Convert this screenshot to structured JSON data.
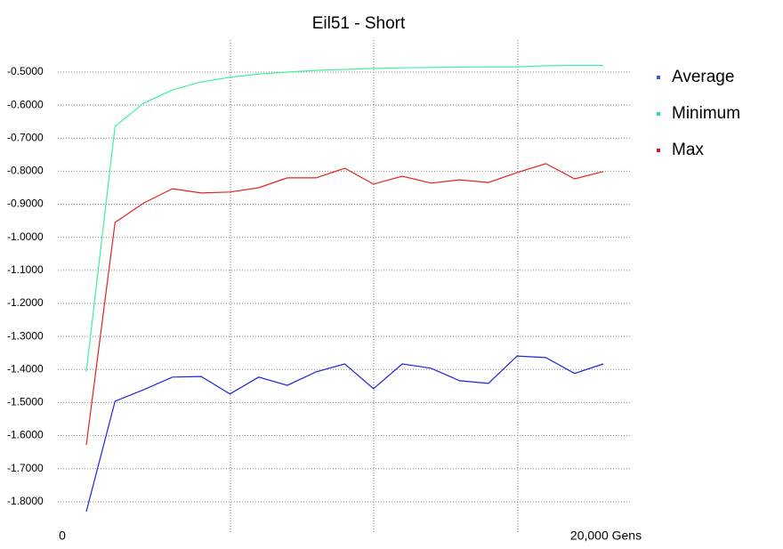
{
  "chart_data": {
    "type": "line",
    "title": "Eil51 - Short",
    "x_start_label": "0",
    "x_end_label": "20,000 Gens",
    "categories": [
      null,
      null,
      null,
      null,
      null,
      null,
      null,
      null,
      null,
      null,
      null,
      null,
      null,
      null,
      null,
      null,
      null,
      null,
      null
    ],
    "series": [
      {
        "name": "Average",
        "color": "#2222d8",
        "legend_color": "#3060e0",
        "values": [
          -1.83,
          -1.496,
          -1.461,
          -1.423,
          -1.421,
          -1.474,
          -1.423,
          -1.448,
          -1.407,
          -1.383,
          -1.458,
          -1.383,
          -1.396,
          -1.434,
          -1.442,
          -1.359,
          -1.364,
          -1.412,
          -1.383
        ]
      },
      {
        "name": "Minimum",
        "color": "#40f0a0",
        "legend_color": "#30e090",
        "values": [
          -1.407,
          -0.664,
          -0.594,
          -0.554,
          -0.53,
          -0.516,
          -0.506,
          -0.5,
          -0.495,
          -0.492,
          -0.489,
          -0.487,
          -0.486,
          -0.485,
          -0.484,
          -0.484,
          -0.481,
          -0.48,
          -0.48
        ]
      },
      {
        "name": "Max",
        "color": "#e02424",
        "legend_color": "#d02020",
        "values": [
          -1.628,
          -0.955,
          -0.896,
          -0.853,
          -0.866,
          -0.863,
          -0.85,
          -0.82,
          -0.82,
          -0.791,
          -0.839,
          -0.815,
          -0.836,
          -0.826,
          -0.834,
          -0.804,
          -0.777,
          -0.823,
          -0.801
        ]
      }
    ],
    "ylim": [
      -1.9,
      -0.4
    ],
    "yticks": [
      {
        "value": -0.5,
        "label": "-0.5000"
      },
      {
        "value": -0.6,
        "label": "-0.6000"
      },
      {
        "value": -0.7,
        "label": "-0.7000"
      },
      {
        "value": -0.8,
        "label": "-0.8000"
      },
      {
        "value": -0.9,
        "label": "-0.9000"
      },
      {
        "value": -1.0,
        "label": "-1.0000"
      },
      {
        "value": -1.1,
        "label": "-1.1000"
      },
      {
        "value": -1.2,
        "label": "-1.2000"
      },
      {
        "value": -1.3,
        "label": "-1.3000"
      },
      {
        "value": -1.4,
        "label": "-1.4000"
      },
      {
        "value": -1.5,
        "label": "-1.5000"
      },
      {
        "value": -1.6,
        "label": "-1.6000"
      },
      {
        "value": -1.7,
        "label": "-1.7000"
      },
      {
        "value": -1.8,
        "label": "-1.8000"
      }
    ],
    "grid": true
  }
}
